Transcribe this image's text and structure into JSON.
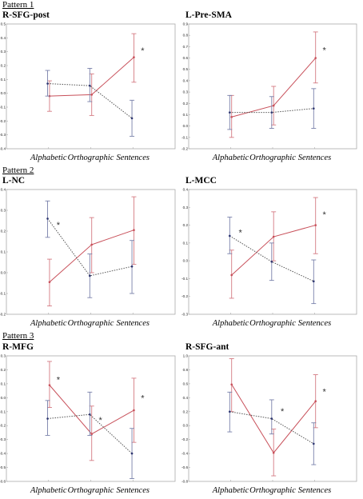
{
  "pattern_labels": [
    "Pattern 1",
    "Pattern 2",
    "Pattern 3"
  ],
  "colors": {
    "series_red": "#c8505a",
    "series_blue": "#2d3570",
    "errbar_red": "#d47a82",
    "errbar_blue": "#7880aa",
    "frame": "#aaaaaa"
  },
  "chart_data": [
    {
      "type": "line",
      "title": "R-SFG-post",
      "categories": [
        "Alphabetic",
        "Orthographic",
        "Sentences"
      ],
      "ylim": [
        -0.4,
        0.5
      ],
      "yticks": [
        "-0.4",
        "-0.3",
        "-0.2",
        "-0.1",
        "0.0",
        "0.1",
        "0.2",
        "0.3",
        "0.4",
        "0.5"
      ],
      "series": [
        {
          "color": "red",
          "style": "solid",
          "values": [
            -0.02,
            -0.01,
            0.26
          ],
          "err_low": [
            -0.13,
            -0.16,
            0.08
          ],
          "err_high": [
            0.09,
            0.14,
            0.43
          ]
        },
        {
          "color": "blue",
          "style": "dotted",
          "values": [
            0.07,
            0.055,
            -0.18
          ],
          "err_low": [
            -0.02,
            -0.06,
            -0.31
          ],
          "err_high": [
            0.165,
            0.18,
            -0.05
          ]
        }
      ],
      "annotations": [
        {
          "text": "*",
          "category": "Sentences",
          "y": 0.31
        }
      ]
    },
    {
      "type": "line",
      "title": "L-Pre-SMA",
      "categories": [
        "Alphabetic",
        "Orthographic",
        "Sentences"
      ],
      "ylim": [
        -0.2,
        0.9
      ],
      "yticks": [
        "-0.2",
        "-0.1",
        "0.0",
        "0.1",
        "0.2",
        "0.3",
        "0.4",
        "0.5",
        "0.6",
        "0.7",
        "0.8",
        "0.9"
      ],
      "series": [
        {
          "color": "red",
          "style": "solid",
          "values": [
            0.08,
            0.18,
            0.6
          ],
          "err_low": [
            -0.1,
            0.01,
            0.38
          ],
          "err_high": [
            0.27,
            0.35,
            0.83
          ]
        },
        {
          "color": "blue",
          "style": "dotted",
          "values": [
            0.12,
            0.12,
            0.155
          ],
          "err_low": [
            -0.03,
            -0.02,
            -0.02
          ],
          "err_high": [
            0.27,
            0.26,
            0.33
          ]
        }
      ],
      "annotations": [
        {
          "text": "*",
          "category": "Sentences",
          "y": 0.67
        }
      ]
    },
    {
      "type": "line",
      "title": "L-NC",
      "categories": [
        "Alphabetic",
        "Orthographic",
        "Sentences"
      ],
      "ylim": [
        -0.2,
        0.4
      ],
      "yticks": [
        "-0.2",
        "-0.1",
        "0.0",
        "0.1",
        "0.2",
        "0.3",
        "0.4"
      ],
      "series": [
        {
          "color": "red",
          "style": "solid",
          "values": [
            -0.045,
            0.135,
            0.205
          ],
          "err_low": [
            -0.16,
            0.0,
            0.04
          ],
          "err_high": [
            0.065,
            0.265,
            0.365
          ]
        },
        {
          "color": "blue",
          "style": "dotted",
          "values": [
            0.26,
            -0.015,
            0.03
          ],
          "err_low": [
            0.17,
            -0.12,
            -0.1
          ],
          "err_high": [
            0.345,
            0.09,
            0.155
          ]
        }
      ],
      "annotations": [
        {
          "text": "*",
          "category": "Alphabetic",
          "y": 0.23
        }
      ]
    },
    {
      "type": "line",
      "title": "L-MCC",
      "categories": [
        "Alphabetic",
        "Orthographic",
        "Sentences"
      ],
      "ylim": [
        -0.3,
        0.4
      ],
      "yticks": [
        "-0.3",
        "-0.2",
        "-0.1",
        "0.0",
        "0.1",
        "0.2",
        "0.3",
        "0.4"
      ],
      "series": [
        {
          "color": "red",
          "style": "solid",
          "values": [
            -0.08,
            0.135,
            0.2
          ],
          "err_low": [
            -0.21,
            0.0,
            0.04
          ],
          "err_high": [
            0.06,
            0.275,
            0.355
          ]
        },
        {
          "color": "blue",
          "style": "dotted",
          "values": [
            0.14,
            -0.005,
            -0.115
          ],
          "err_low": [
            0.04,
            -0.11,
            -0.24
          ],
          "err_high": [
            0.245,
            0.1,
            0.005
          ]
        }
      ],
      "annotations": [
        {
          "text": "*",
          "category": "Alphabetic",
          "y": 0.16
        },
        {
          "text": "*",
          "category": "Sentences",
          "y": 0.26
        }
      ]
    },
    {
      "type": "line",
      "title": "R-MFG",
      "categories": [
        "Alphabetic",
        "Orthographic",
        "Sentences"
      ],
      "ylim": [
        -0.6,
        0.3
      ],
      "yticks": [
        "-0.6",
        "-0.5",
        "-0.4",
        "-0.3",
        "-0.2",
        "-0.1",
        "0.0",
        "0.1",
        "0.2",
        "0.3"
      ],
      "series": [
        {
          "color": "red",
          "style": "solid",
          "values": [
            0.09,
            -0.26,
            -0.09
          ],
          "err_low": [
            -0.07,
            -0.45,
            -0.32
          ],
          "err_high": [
            0.26,
            -0.06,
            0.14
          ]
        },
        {
          "color": "blue",
          "style": "dotted",
          "values": [
            -0.15,
            -0.12,
            -0.4
          ],
          "err_low": [
            -0.27,
            -0.27,
            -0.58
          ],
          "err_high": [
            -0.02,
            0.04,
            -0.22
          ]
        }
      ],
      "annotations": [
        {
          "text": "*",
          "category": "Alphabetic",
          "y": 0.13
        },
        {
          "text": "*",
          "category": "Orthographic",
          "y": -0.16
        },
        {
          "text": "*",
          "category": "Sentences",
          "y": 0.0
        }
      ]
    },
    {
      "type": "line",
      "title": "R-SFG-ant",
      "categories": [
        "Alphabetic",
        "Orthographic",
        "Sentences"
      ],
      "ylim": [
        -0.8,
        1.0
      ],
      "yticks": [
        "-0.8",
        "-0.6",
        "-0.4",
        "-0.2",
        "0.0",
        "0.2",
        "0.4",
        "0.6",
        "0.8",
        "1.0"
      ],
      "series": [
        {
          "color": "red",
          "style": "solid",
          "values": [
            0.59,
            -0.39,
            0.35
          ],
          "err_low": [
            0.2,
            -0.72,
            -0.03
          ],
          "err_high": [
            0.96,
            -0.05,
            0.73
          ]
        },
        {
          "color": "blue",
          "style": "dotted",
          "values": [
            0.2,
            0.1,
            -0.26
          ],
          "err_low": [
            -0.09,
            -0.12,
            -0.56
          ],
          "err_high": [
            0.48,
            0.37,
            0.04
          ]
        }
      ],
      "annotations": [
        {
          "text": "*",
          "category": "Orthographic",
          "y": 0.21
        },
        {
          "text": "*",
          "category": "Sentences",
          "y": 0.49
        }
      ]
    }
  ]
}
